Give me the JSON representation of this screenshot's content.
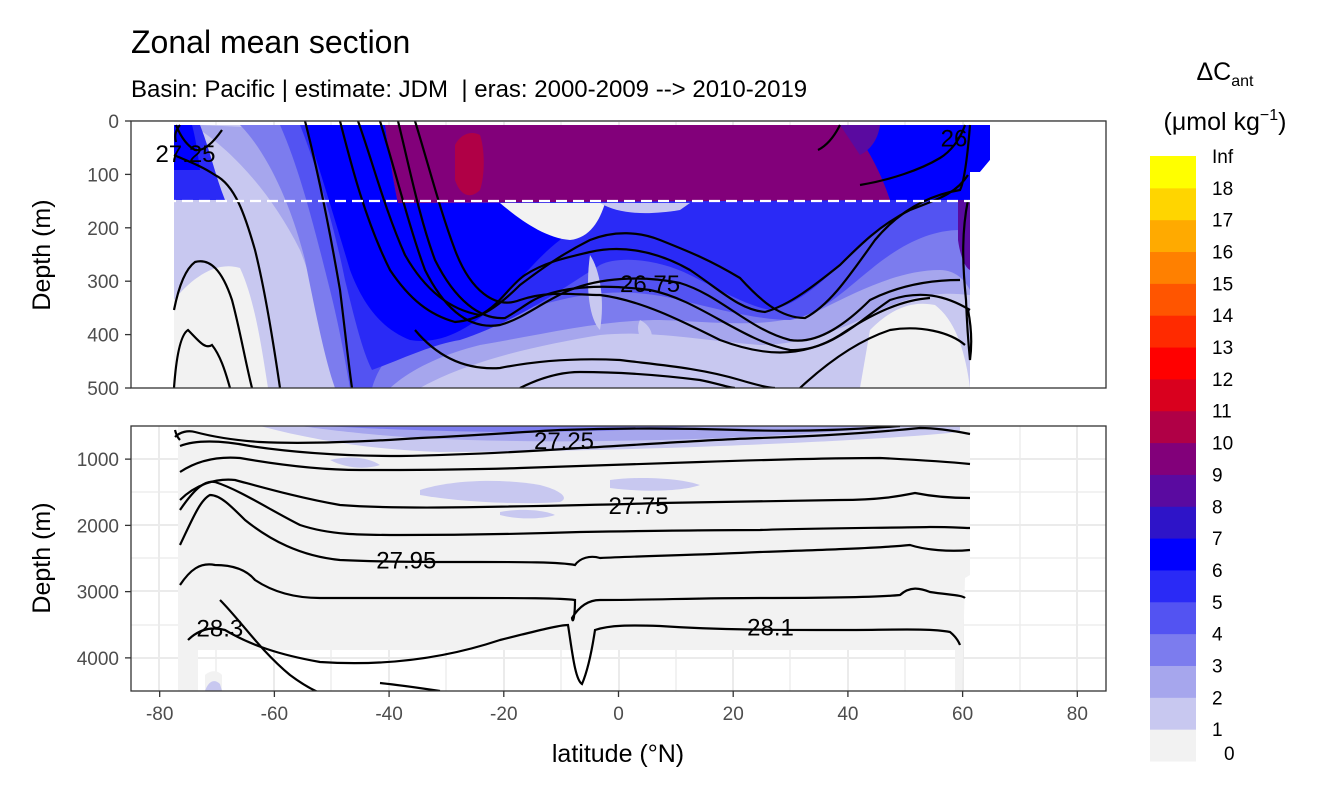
{
  "title": "Zonal mean section",
  "subtitle": "Basin: Pacific | estimate: JDM  | eras: 2000-2009 --> 2010-2019",
  "chart_data": {
    "type": "heatmap",
    "title": "Zonal mean section",
    "subtitle": "Basin: Pacific | estimate: JDM  | eras: 2000-2009 --> 2010-2019",
    "xlabel": "latitude (°N)",
    "ylabel": "Depth (m)",
    "xlim": [
      -85,
      85
    ],
    "x_ticks": [
      -80,
      -60,
      -40,
      -20,
      0,
      20,
      40,
      60,
      80
    ],
    "x_tick_labels": [
      "-80",
      "-60",
      "-40",
      "-20",
      "0",
      "20",
      "40",
      "60",
      "80"
    ],
    "data_lat_range": [
      -77,
      64
    ],
    "panels": [
      {
        "name": "upper",
        "ylim": [
          500,
          0
        ],
        "y_ticks": [
          0,
          100,
          200,
          300,
          400,
          500
        ],
        "y_tick_labels": [
          "0",
          "100",
          "200",
          "300",
          "400",
          "500"
        ],
        "reference_line_depth": 150,
        "contour_labels": [
          {
            "text": "27.25",
            "lat": -75.5,
            "depth": 62
          },
          {
            "text": "26",
            "lat": 58.5,
            "depth": 33
          },
          {
            "text": "26.75",
            "lat": 5.5,
            "depth": 305
          }
        ]
      },
      {
        "name": "lower",
        "ylim": [
          4500,
          500
        ],
        "y_ticks": [
          1000,
          2000,
          3000,
          4000
        ],
        "y_tick_labels": [
          "1000",
          "2000",
          "3000",
          "4000"
        ],
        "contour_labels": [
          {
            "text": "27.25",
            "lat": -9.5,
            "depth": 730
          },
          {
            "text": "27.75",
            "lat": 3.5,
            "depth": 1705
          },
          {
            "text": "27.95",
            "lat": -37,
            "depth": 2530
          },
          {
            "text": "28.3",
            "lat": -69.5,
            "depth": 3555
          },
          {
            "text": "28.1",
            "lat": 26.5,
            "depth": 3545
          }
        ]
      }
    ],
    "legend": {
      "title": "ΔC",
      "title_subscript": "ant",
      "unit": "(μmol kg",
      "unit_superscript": "−1",
      "unit_close": ")",
      "position": "right",
      "bins": [
        {
          "label": "0",
          "color": "#f2f2f2"
        },
        {
          "label": "1",
          "color": "#c8c8f0"
        },
        {
          "label": "2",
          "color": "#a6a6ed"
        },
        {
          "label": "3",
          "color": "#7c7cee"
        },
        {
          "label": "4",
          "color": "#5353f2"
        },
        {
          "label": "5",
          "color": "#2a2af6"
        },
        {
          "label": "6",
          "color": "#0000ff"
        },
        {
          "label": "7",
          "color": "#2e14c8"
        },
        {
          "label": "8",
          "color": "#5a0aa0"
        },
        {
          "label": "9",
          "color": "#82007a"
        },
        {
          "label": "10",
          "color": "#b00046"
        },
        {
          "label": "11",
          "color": "#d9001e"
        },
        {
          "label": "12",
          "color": "#ff0000"
        },
        {
          "label": "13",
          "color": "#ff2a00"
        },
        {
          "label": "14",
          "color": "#ff5500"
        },
        {
          "label": "15",
          "color": "#ff8000"
        },
        {
          "label": "16",
          "color": "#ffaa00"
        },
        {
          "label": "17",
          "color": "#ffd500"
        },
        {
          "label": "18",
          "color": "#ffff00"
        }
      ],
      "top_label": "Inf"
    }
  }
}
